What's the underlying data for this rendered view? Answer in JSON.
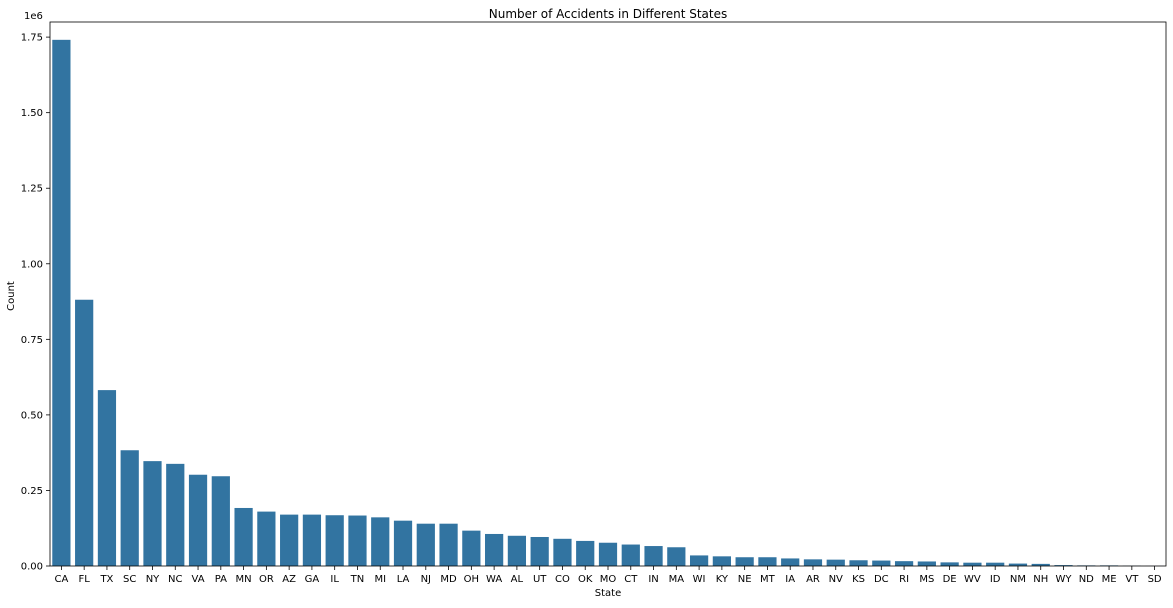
{
  "chart_data": {
    "type": "bar",
    "title": "Number of Accidents in Different States",
    "xlabel": "State",
    "ylabel": "Count",
    "y_offset_label": "1e6",
    "ylim": [
      0,
      1.8
    ],
    "yticks": [
      0.0,
      0.25,
      0.5,
      0.75,
      1.0,
      1.25,
      1.5,
      1.75
    ],
    "ytick_labels": [
      "0.00",
      "0.25",
      "0.50",
      "0.75",
      "1.00",
      "1.25",
      "1.50",
      "1.75"
    ],
    "grid": false,
    "bar_color": "#3274a1",
    "categories": [
      "CA",
      "FL",
      "TX",
      "SC",
      "NY",
      "NC",
      "VA",
      "PA",
      "MN",
      "OR",
      "AZ",
      "GA",
      "IL",
      "TN",
      "MI",
      "LA",
      "NJ",
      "MD",
      "OH",
      "WA",
      "AL",
      "UT",
      "CO",
      "OK",
      "MO",
      "CT",
      "IN",
      "MA",
      "WI",
      "KY",
      "NE",
      "MT",
      "IA",
      "AR",
      "NV",
      "KS",
      "DC",
      "RI",
      "MS",
      "DE",
      "WV",
      "ID",
      "NM",
      "NH",
      "WY",
      "ND",
      "ME",
      "VT",
      "SD"
    ],
    "values": [
      1.741,
      0.881,
      0.582,
      0.383,
      0.347,
      0.338,
      0.302,
      0.297,
      0.192,
      0.18,
      0.17,
      0.17,
      0.168,
      0.167,
      0.161,
      0.15,
      0.14,
      0.14,
      0.117,
      0.106,
      0.1,
      0.096,
      0.09,
      0.083,
      0.077,
      0.071,
      0.066,
      0.062,
      0.035,
      0.032,
      0.029,
      0.029,
      0.025,
      0.022,
      0.021,
      0.019,
      0.018,
      0.016,
      0.015,
      0.012,
      0.011,
      0.011,
      0.008,
      0.007,
      0.003,
      0.002,
      0.002,
      0.0008,
      0.0003
    ]
  }
}
